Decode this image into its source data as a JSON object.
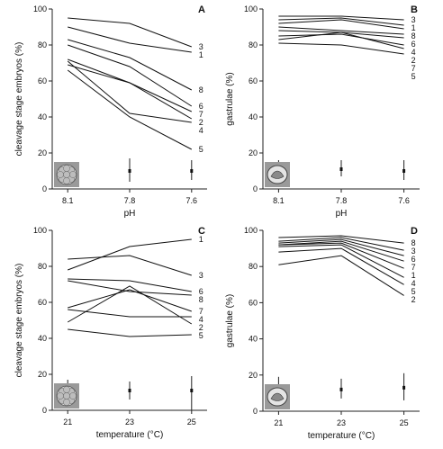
{
  "chart_data": [
    {
      "type": "line",
      "panel": "A",
      "categories": [
        "8.1",
        "7.8",
        "7.6"
      ],
      "xlabel": "pH",
      "ylabel": "cleavage stage embryos (%)",
      "ylim": [
        0,
        100
      ],
      "yticks": [
        "0",
        "20",
        "40",
        "60",
        "80",
        "100"
      ],
      "series": [
        {
          "name": "3",
          "values": [
            95,
            92,
            79
          ]
        },
        {
          "name": "1",
          "values": [
            90,
            81,
            76
          ]
        },
        {
          "name": "8",
          "values": [
            83,
            73,
            55
          ]
        },
        {
          "name": "6",
          "values": [
            80,
            68,
            46
          ]
        },
        {
          "name": "7",
          "values": [
            72,
            59,
            43
          ]
        },
        {
          "name": "2",
          "values": [
            69,
            59,
            39
          ]
        },
        {
          "name": "4",
          "values": [
            71,
            42,
            37
          ]
        },
        {
          "name": "5",
          "values": [
            66,
            40,
            22
          ]
        }
      ],
      "error_bars": {
        "y": [
          10,
          10,
          10
        ],
        "low": [
          5,
          4,
          5
        ],
        "high": [
          15,
          17,
          16
        ]
      },
      "inset_icon": "cleavage-embryo-icon"
    },
    {
      "type": "line",
      "panel": "B",
      "categories": [
        "8.1",
        "7.8",
        "7.6"
      ],
      "xlabel": "pH",
      "ylabel": "gastrulae (%)",
      "ylim": [
        0,
        100
      ],
      "yticks": [
        "0",
        "20",
        "40",
        "60",
        "80",
        "100"
      ],
      "series": [
        {
          "name": "3",
          "values": [
            96,
            96,
            94
          ]
        },
        {
          "name": "1",
          "values": [
            94,
            95,
            91
          ]
        },
        {
          "name": "8",
          "values": [
            92,
            94,
            89
          ]
        },
        {
          "name": "6",
          "values": [
            90,
            88,
            86
          ]
        },
        {
          "name": "4",
          "values": [
            88,
            87,
            84
          ]
        },
        {
          "name": "2",
          "values": [
            85,
            86,
            80
          ]
        },
        {
          "name": "7",
          "values": [
            83,
            87,
            78
          ]
        },
        {
          "name": "5",
          "values": [
            81,
            80,
            75
          ]
        }
      ],
      "error_bars": {
        "y": [
          11,
          11,
          10
        ],
        "low": [
          6,
          7,
          5
        ],
        "high": [
          16,
          16,
          16
        ]
      },
      "inset_icon": "gastrula-icon"
    },
    {
      "type": "line",
      "panel": "C",
      "categories": [
        "21",
        "23",
        "25"
      ],
      "xlabel": "temperature (°C)",
      "ylabel": "cleavage stage embryos (%)",
      "ylim": [
        0,
        100
      ],
      "yticks": [
        "0",
        "20",
        "40",
        "60",
        "80",
        "100"
      ],
      "series": [
        {
          "name": "1",
          "values": [
            78,
            91,
            95
          ]
        },
        {
          "name": "3",
          "values": [
            84,
            86,
            75
          ]
        },
        {
          "name": "6",
          "values": [
            73,
            72,
            66
          ]
        },
        {
          "name": "8",
          "values": [
            72,
            66,
            64
          ]
        },
        {
          "name": "7",
          "values": [
            57,
            67,
            55
          ]
        },
        {
          "name": "4",
          "values": [
            56,
            52,
            52
          ]
        },
        {
          "name": "2",
          "values": [
            49,
            69,
            48
          ]
        },
        {
          "name": "5",
          "values": [
            45,
            41,
            42
          ]
        }
      ],
      "error_bars": {
        "y": [
          11,
          11,
          11
        ],
        "low": [
          5,
          6,
          0
        ],
        "high": [
          17,
          16,
          19
        ]
      },
      "inset_icon": "cleavage-embryo-icon"
    },
    {
      "type": "line",
      "panel": "D",
      "categories": [
        "21",
        "23",
        "25"
      ],
      "xlabel": "temperature (°C)",
      "ylabel": "gastrulae (%)",
      "ylim": [
        0,
        100
      ],
      "yticks": [
        "0",
        "20",
        "40",
        "60",
        "80",
        "100"
      ],
      "series": [
        {
          "name": "8",
          "values": [
            96,
            97,
            93
          ]
        },
        {
          "name": "3",
          "values": [
            94,
            96,
            89
          ]
        },
        {
          "name": "6",
          "values": [
            93,
            95,
            86
          ]
        },
        {
          "name": "7",
          "values": [
            92,
            94,
            83
          ]
        },
        {
          "name": "1",
          "values": [
            92,
            93,
            79
          ]
        },
        {
          "name": "4",
          "values": [
            91,
            92,
            74
          ]
        },
        {
          "name": "5",
          "values": [
            88,
            90,
            70
          ]
        },
        {
          "name": "2",
          "values": [
            81,
            86,
            64
          ]
        }
      ],
      "error_bars": {
        "y": [
          12,
          12,
          13
        ],
        "low": [
          6,
          7,
          6
        ],
        "high": [
          19,
          18,
          21
        ]
      },
      "inset_icon": "gastrula-icon"
    }
  ]
}
